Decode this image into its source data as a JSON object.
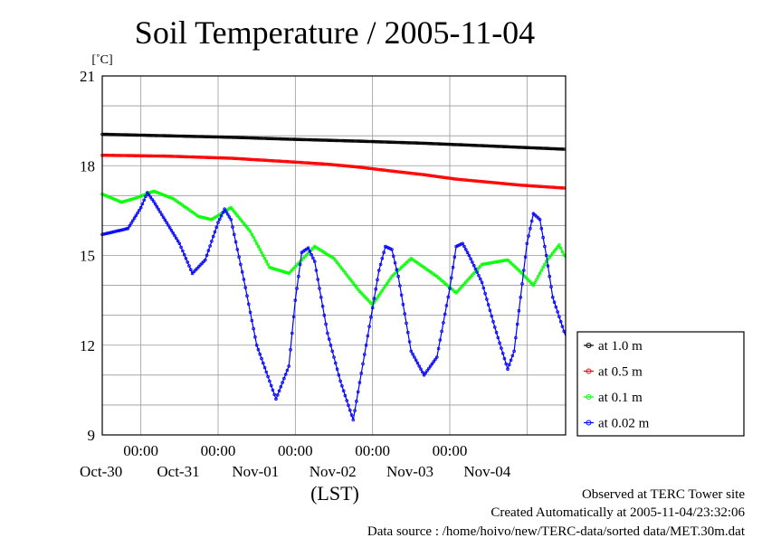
{
  "chart_data": {
    "type": "line",
    "title": "Soil Temperature / 2005-11-04",
    "ylabel": "[˚C]",
    "xlabel": "(LST)",
    "ylim": [
      9,
      21
    ],
    "yticks": [
      9,
      12,
      15,
      18,
      21
    ],
    "xlim_hours": [
      0,
      144
    ],
    "x_start": "2005-10-29T12:00",
    "x_tick_labels": [
      {
        "hours": 12,
        "time": "00:00",
        "date": "Oct-30"
      },
      {
        "hours": 36,
        "time": "00:00",
        "date": "Oct-31"
      },
      {
        "hours": 60,
        "time": "00:00",
        "date": "Nov-01"
      },
      {
        "hours": 84,
        "time": "00:00",
        "date": "Nov-02"
      },
      {
        "hours": 108,
        "time": "00:00",
        "date": "Nov-03"
      },
      {
        "hours": 132,
        "date": "Nov-04"
      }
    ],
    "grid": true,
    "legend_position": "right",
    "series": [
      {
        "name": "at 1.0 m",
        "color": "#000000",
        "points": [
          [
            0,
            19.05
          ],
          [
            20,
            19.0
          ],
          [
            40,
            18.95
          ],
          [
            60,
            18.88
          ],
          [
            80,
            18.82
          ],
          [
            100,
            18.75
          ],
          [
            120,
            18.66
          ],
          [
            144,
            18.55
          ]
        ]
      },
      {
        "name": "at 0.5 m",
        "color": "#ff0000",
        "points": [
          [
            0,
            18.35
          ],
          [
            20,
            18.32
          ],
          [
            40,
            18.25
          ],
          [
            60,
            18.12
          ],
          [
            70,
            18.05
          ],
          [
            80,
            17.95
          ],
          [
            90,
            17.82
          ],
          [
            100,
            17.7
          ],
          [
            110,
            17.55
          ],
          [
            120,
            17.45
          ],
          [
            130,
            17.35
          ],
          [
            144,
            17.25
          ]
        ]
      },
      {
        "name": "at 0.1 m",
        "color": "#00ff00",
        "points": [
          [
            0,
            17.05
          ],
          [
            6,
            16.78
          ],
          [
            10,
            16.9
          ],
          [
            16,
            17.15
          ],
          [
            22,
            16.9
          ],
          [
            30,
            16.3
          ],
          [
            34,
            16.2
          ],
          [
            40,
            16.6
          ],
          [
            46,
            15.8
          ],
          [
            52,
            14.6
          ],
          [
            58,
            14.4
          ],
          [
            66,
            15.3
          ],
          [
            72,
            14.9
          ],
          [
            80,
            13.8
          ],
          [
            84,
            13.35
          ],
          [
            90,
            14.3
          ],
          [
            96,
            14.9
          ],
          [
            104,
            14.3
          ],
          [
            110,
            13.75
          ],
          [
            118,
            14.7
          ],
          [
            126,
            14.85
          ],
          [
            130,
            14.45
          ],
          [
            134,
            14.0
          ],
          [
            138,
            14.8
          ],
          [
            142,
            15.35
          ],
          [
            144,
            14.9
          ]
        ]
      },
      {
        "name": "at 0.02 m",
        "color": "#0000ff",
        "points": [
          [
            0,
            15.7
          ],
          [
            4,
            15.8
          ],
          [
            8,
            15.9
          ],
          [
            12,
            16.6
          ],
          [
            14,
            17.1
          ],
          [
            16,
            16.8
          ],
          [
            20,
            16.1
          ],
          [
            24,
            15.4
          ],
          [
            28,
            14.4
          ],
          [
            32,
            14.85
          ],
          [
            36,
            16.1
          ],
          [
            38,
            16.55
          ],
          [
            40,
            16.2
          ],
          [
            44,
            14.2
          ],
          [
            48,
            12.0
          ],
          [
            54,
            10.2
          ],
          [
            58,
            11.3
          ],
          [
            60,
            13.5
          ],
          [
            62,
            15.1
          ],
          [
            64,
            15.25
          ],
          [
            66,
            14.8
          ],
          [
            70,
            12.4
          ],
          [
            74,
            10.8
          ],
          [
            78,
            9.5
          ],
          [
            82,
            12.0
          ],
          [
            86,
            14.5
          ],
          [
            88,
            15.3
          ],
          [
            90,
            15.2
          ],
          [
            92,
            14.3
          ],
          [
            96,
            11.8
          ],
          [
            100,
            11.0
          ],
          [
            104,
            11.6
          ],
          [
            108,
            13.9
          ],
          [
            110,
            15.3
          ],
          [
            112,
            15.4
          ],
          [
            114,
            15.0
          ],
          [
            118,
            14.1
          ],
          [
            122,
            12.6
          ],
          [
            126,
            11.2
          ],
          [
            128,
            11.8
          ],
          [
            132,
            15.4
          ],
          [
            134,
            16.4
          ],
          [
            136,
            16.2
          ],
          [
            138,
            15.0
          ],
          [
            140,
            13.6
          ],
          [
            144,
            12.3
          ]
        ]
      }
    ]
  },
  "footer": {
    "site": "Observed at TERC Tower site",
    "created": "Created Automatically at 2005-11-04/23:32:06",
    "source": "Data source : /home/hoivo/new/TERC-data/sorted data/MET.30m.dat"
  }
}
